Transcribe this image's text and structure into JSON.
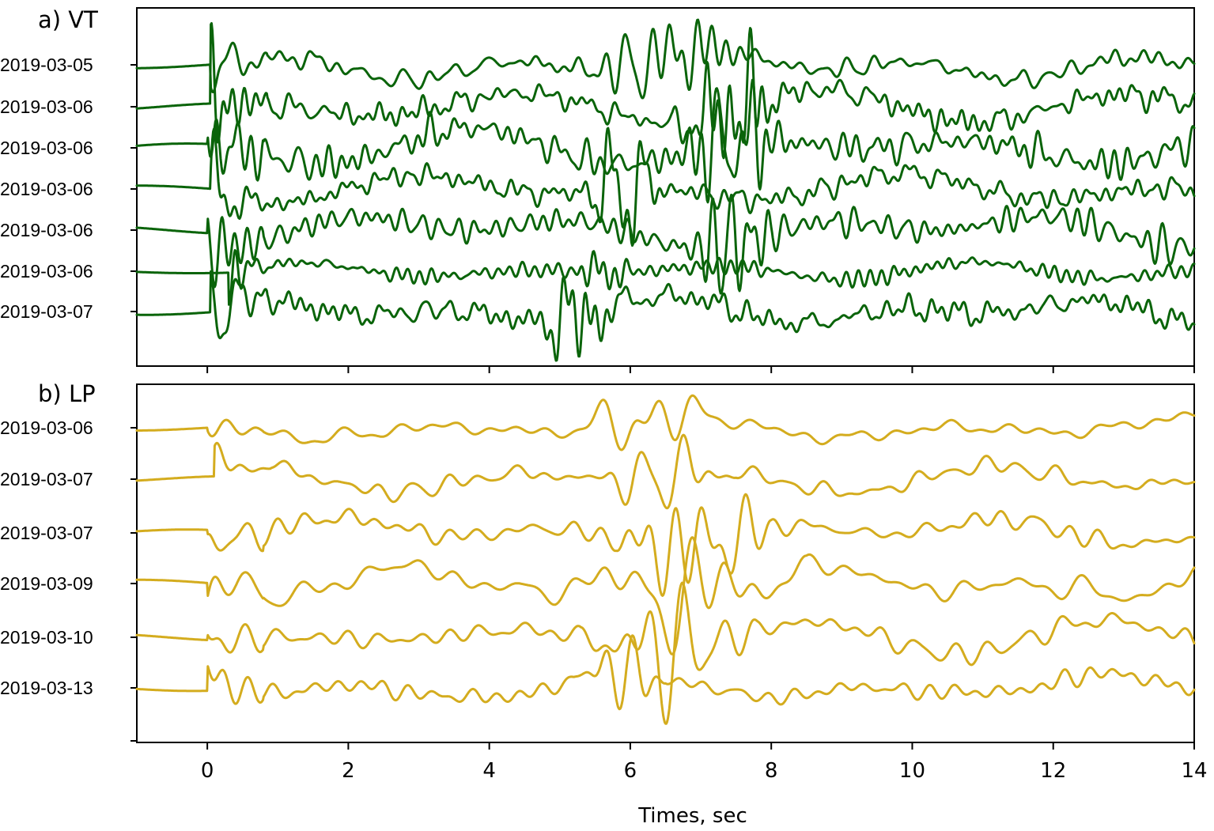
{
  "chart_data": [
    {
      "type": "line",
      "title": "a) VT",
      "color": "#0a640a",
      "xlim": [
        -1,
        14
      ],
      "traces": [
        {
          "label": "2019-03-05",
          "onset": 0.05,
          "amp": 1.0,
          "burst": [
            5.4,
            7.7
          ]
        },
        {
          "label": "2019-03-06",
          "onset": 0.05,
          "amp": 1.1,
          "burst": [
            6.6,
            8.2
          ]
        },
        {
          "label": "2019-03-06",
          "onset": 0.0,
          "amp": 1.3,
          "burst": [
            6.8,
            8.0
          ]
        },
        {
          "label": "2019-03-06",
          "onset": 0.05,
          "amp": 1.0,
          "burst": [
            5.3,
            6.5
          ]
        },
        {
          "label": "2019-03-06",
          "onset": 0.0,
          "amp": 1.2,
          "burst": [
            7.0,
            8.0
          ]
        },
        {
          "label": "2019-03-06",
          "onset": 0.3,
          "amp": 0.6,
          "burst": [
            5.2,
            6.0
          ]
        },
        {
          "label": "2019-03-07",
          "onset": 0.05,
          "amp": 1.0,
          "burst": [
            4.7,
            6.2
          ]
        }
      ]
    },
    {
      "type": "line",
      "title": "b) LP",
      "color": "#d4ac1e",
      "xlim": [
        -1,
        14
      ],
      "xlabel": "Times, sec",
      "xticks": [
        0,
        2,
        4,
        6,
        8,
        10,
        12,
        14
      ],
      "traces": [
        {
          "label": "2019-03-06",
          "onset": 0.0,
          "amp": 0.9,
          "burst": [
            5.3,
            7.2
          ]
        },
        {
          "label": "2019-03-07",
          "onset": 0.1,
          "amp": 1.0,
          "burst": [
            5.6,
            7.5
          ]
        },
        {
          "label": "2019-03-07",
          "onset": 0.0,
          "amp": 1.1,
          "burst": [
            5.8,
            8.0
          ]
        },
        {
          "label": "2019-03-09",
          "onset": 0.0,
          "amp": 1.2,
          "burst": [
            5.3,
            8.5
          ]
        },
        {
          "label": "2019-03-10",
          "onset": 0.0,
          "amp": 1.2,
          "burst": [
            5.3,
            7.8
          ]
        },
        {
          "label": "2019-03-13",
          "onset": 0.0,
          "amp": 1.0,
          "burst": [
            5.2,
            6.5
          ]
        }
      ]
    }
  ]
}
